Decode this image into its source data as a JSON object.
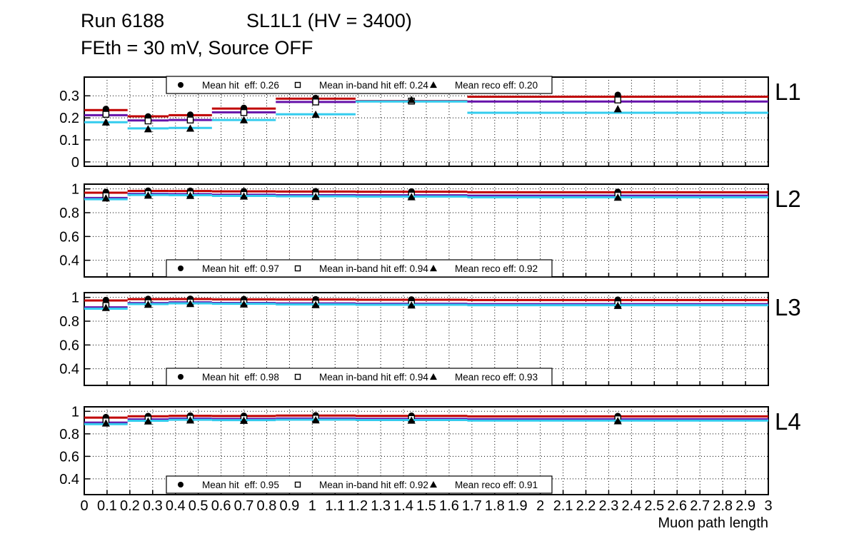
{
  "header": {
    "run": "Run 6188",
    "chamber": "SL1L1 (HV = 3400)",
    "conditions": "FEth = 30 mV, Source OFF"
  },
  "chart_data": {
    "type": "line",
    "title": "Run 6188 SL1L1 (HV = 3400) FEth = 30 mV, Source OFF",
    "xlabel": "Muon path length",
    "xlim": [
      0,
      3
    ],
    "xticks": [
      "0",
      "0.1",
      "0.2",
      "0.3",
      "0.4",
      "0.5",
      "0.6",
      "0.7",
      "0.8",
      "0.9",
      "1",
      "1.1",
      "1.2",
      "1.3",
      "1.4",
      "1.5",
      "1.6",
      "1.7",
      "1.8",
      "1.9",
      "2",
      "2.1",
      "2.2",
      "2.3",
      "2.4",
      "2.5",
      "2.6",
      "2.7",
      "2.8",
      "2.9",
      "3"
    ],
    "bin_edges": [
      0,
      0.19,
      0.37,
      0.56,
      0.84,
      1.19,
      1.68,
      3.0
    ],
    "grid": true,
    "colors": {
      "hit_line": "#c00000",
      "inband_line": "#6612aa",
      "reco_line": "#33ccee",
      "marker": "#000000",
      "frame": "#000000",
      "background": "#ffffff"
    },
    "panels": [
      {
        "label": "L1",
        "ylim": [
          -0.02,
          0.385
        ],
        "yticks": [
          "0",
          "0.1",
          "0.2",
          "0.3"
        ],
        "legend_position": "top",
        "means": {
          "hit": 0.26,
          "inband": 0.24,
          "reco": 0.2
        },
        "legend": [
          {
            "marker": "circle",
            "label": "Mean hit  eff: 0.26"
          },
          {
            "marker": "square-open",
            "label": "Mean in-band hit eff: 0.24"
          },
          {
            "marker": "triangle",
            "label": "Mean reco eff: 0.20"
          }
        ],
        "series": {
          "hit": {
            "line": [
              0.235,
              0.207,
              0.212,
              0.242,
              0.287,
              0.276,
              0.296
            ],
            "markers": [
              0.24,
              0.206,
              0.214,
              0.245,
              0.29,
              0.278,
              0.304
            ]
          },
          "inband": {
            "line": [
              0.212,
              0.188,
              0.19,
              0.225,
              0.272,
              0.275,
              0.274
            ],
            "markers": [
              0.216,
              0.186,
              0.19,
              0.224,
              0.272,
              0.276,
              0.281
            ]
          },
          "reco": {
            "line": [
              0.18,
              0.152,
              0.154,
              0.19,
              0.216,
              0.274,
              0.223
            ],
            "markers": [
              0.18,
              0.149,
              0.152,
              0.19,
              0.215,
              0.282,
              0.24
            ]
          }
        }
      },
      {
        "label": "L2",
        "ylim": [
          0.26,
          1.04
        ],
        "yticks": [
          "0.4",
          "0.6",
          "0.8",
          "1"
        ],
        "legend_position": "bottom",
        "means": {
          "hit": 0.97,
          "inband": 0.94,
          "reco": 0.92
        },
        "legend": [
          {
            "marker": "circle",
            "label": "Mean hit  eff: 0.97"
          },
          {
            "marker": "square-open",
            "label": "Mean in-band hit eff: 0.94"
          },
          {
            "marker": "triangle",
            "label": "Mean reco eff: 0.92"
          }
        ],
        "series": {
          "hit": {
            "line": [
              0.968,
              0.983,
              0.982,
              0.979,
              0.978,
              0.976,
              0.972
            ],
            "markers": [
              0.974,
              0.985,
              0.984,
              0.981,
              0.98,
              0.978,
              0.975
            ]
          },
          "inband": {
            "line": [
              0.924,
              0.958,
              0.956,
              0.951,
              0.948,
              0.946,
              0.943
            ],
            "markers": [
              0.942,
              0.96,
              0.958,
              0.953,
              0.95,
              0.948,
              0.946
            ]
          },
          "reco": {
            "line": [
              0.913,
              0.949,
              0.947,
              0.941,
              0.938,
              0.936,
              0.93
            ],
            "markers": [
              0.922,
              0.945,
              0.943,
              0.938,
              0.934,
              0.932,
              0.928
            ]
          }
        }
      },
      {
        "label": "L3",
        "ylim": [
          0.26,
          1.04
        ],
        "yticks": [
          "0.4",
          "0.6",
          "0.8",
          "1"
        ],
        "legend_position": "bottom",
        "means": {
          "hit": 0.98,
          "inband": 0.94,
          "reco": 0.93
        },
        "legend": [
          {
            "marker": "circle",
            "label": "Mean hit  eff: 0.98"
          },
          {
            "marker": "square-open",
            "label": "Mean in-band hit eff: 0.94"
          },
          {
            "marker": "triangle",
            "label": "Mean reco eff: 0.93"
          }
        ],
        "series": {
          "hit": {
            "line": [
              0.974,
              0.985,
              0.986,
              0.983,
              0.982,
              0.98,
              0.978
            ],
            "markers": [
              0.977,
              0.987,
              0.988,
              0.985,
              0.984,
              0.982,
              0.98
            ]
          },
          "inband": {
            "line": [
              0.916,
              0.952,
              0.958,
              0.953,
              0.949,
              0.946,
              0.943
            ],
            "markers": [
              0.932,
              0.955,
              0.96,
              0.955,
              0.951,
              0.948,
              0.946
            ]
          },
          "reco": {
            "line": [
              0.905,
              0.944,
              0.95,
              0.946,
              0.941,
              0.938,
              0.934
            ],
            "markers": [
              0.913,
              0.94,
              0.946,
              0.942,
              0.937,
              0.934,
              0.93
            ]
          }
        }
      },
      {
        "label": "L4",
        "ylim": [
          0.26,
          1.04
        ],
        "yticks": [
          "0.4",
          "0.6",
          "0.8",
          "1"
        ],
        "legend_position": "bottom",
        "means": {
          "hit": 0.95,
          "inband": 0.92,
          "reco": 0.91
        },
        "legend": [
          {
            "marker": "circle",
            "label": "Mean hit  eff: 0.95"
          },
          {
            "marker": "square-open",
            "label": "Mean in-band hit eff: 0.92"
          },
          {
            "marker": "triangle",
            "label": "Mean reco eff: 0.91"
          }
        ],
        "series": {
          "hit": {
            "line": [
              0.944,
              0.956,
              0.96,
              0.958,
              0.962,
              0.959,
              0.955
            ],
            "markers": [
              0.948,
              0.958,
              0.962,
              0.96,
              0.964,
              0.961,
              0.958
            ]
          },
          "inband": {
            "line": [
              0.9,
              0.928,
              0.935,
              0.932,
              0.936,
              0.933,
              0.93
            ],
            "markers": [
              0.914,
              0.931,
              0.938,
              0.935,
              0.939,
              0.936,
              0.933
            ]
          },
          "reco": {
            "line": [
              0.886,
              0.916,
              0.925,
              0.922,
              0.926,
              0.923,
              0.918
            ],
            "markers": [
              0.894,
              0.912,
              0.921,
              0.918,
              0.922,
              0.919,
              0.914
            ]
          }
        }
      }
    ]
  }
}
